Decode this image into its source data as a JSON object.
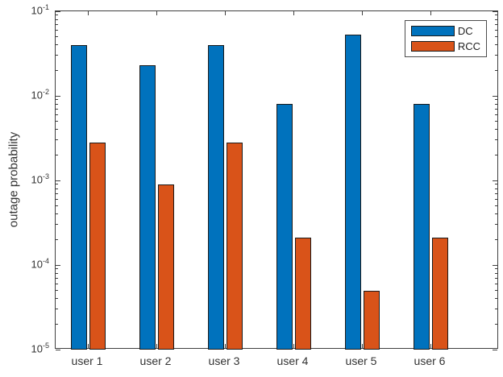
{
  "chart_data": {
    "type": "bar",
    "scale": "log",
    "title": "",
    "xlabel": "",
    "ylabel": "outage probability",
    "categories": [
      "user 1",
      "user 2",
      "user 3",
      "user 4",
      "user 5",
      "user 6"
    ],
    "series": [
      {
        "name": "DC",
        "color": "#0072BD",
        "values": [
          0.04,
          0.023,
          0.04,
          0.008,
          0.053,
          0.008
        ]
      },
      {
        "name": "RCC",
        "color": "#D95319",
        "values": [
          0.0028,
          0.0009,
          0.0028,
          0.00021,
          5e-05,
          0.00021
        ]
      }
    ],
    "ylim": [
      1e-05,
      0.1
    ],
    "ytick_exponents": [
      -1,
      -2,
      -3,
      -4,
      -5
    ],
    "ytick_base": "10",
    "grid": false,
    "legend_position": "northeast",
    "axis_color": "#3f3f3f",
    "bar_edge_color": "#1a1a1a"
  }
}
